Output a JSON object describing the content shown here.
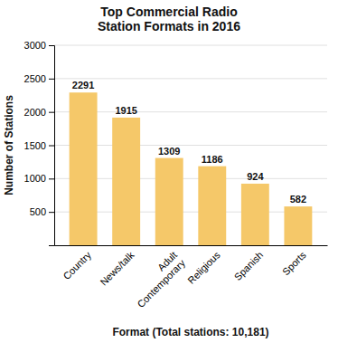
{
  "chart_data": {
    "type": "bar",
    "title": "Top Commercial Radio\nStation Formats in 2016",
    "categories": [
      "Country",
      "News/talk",
      "Adult\nContemporary",
      "Religious",
      "Spanish",
      "Sports"
    ],
    "values": [
      2291,
      1915,
      1309,
      1186,
      924,
      582
    ],
    "color": "#F5C869",
    "xlabel": "Format (Total stations: 10,181)",
    "ylabel": "Number of Stations",
    "ylim": [
      0,
      3000
    ],
    "yticks": [
      500,
      1000,
      1500,
      2000,
      2500,
      3000
    ],
    "grid": true,
    "data_labels": true
  }
}
